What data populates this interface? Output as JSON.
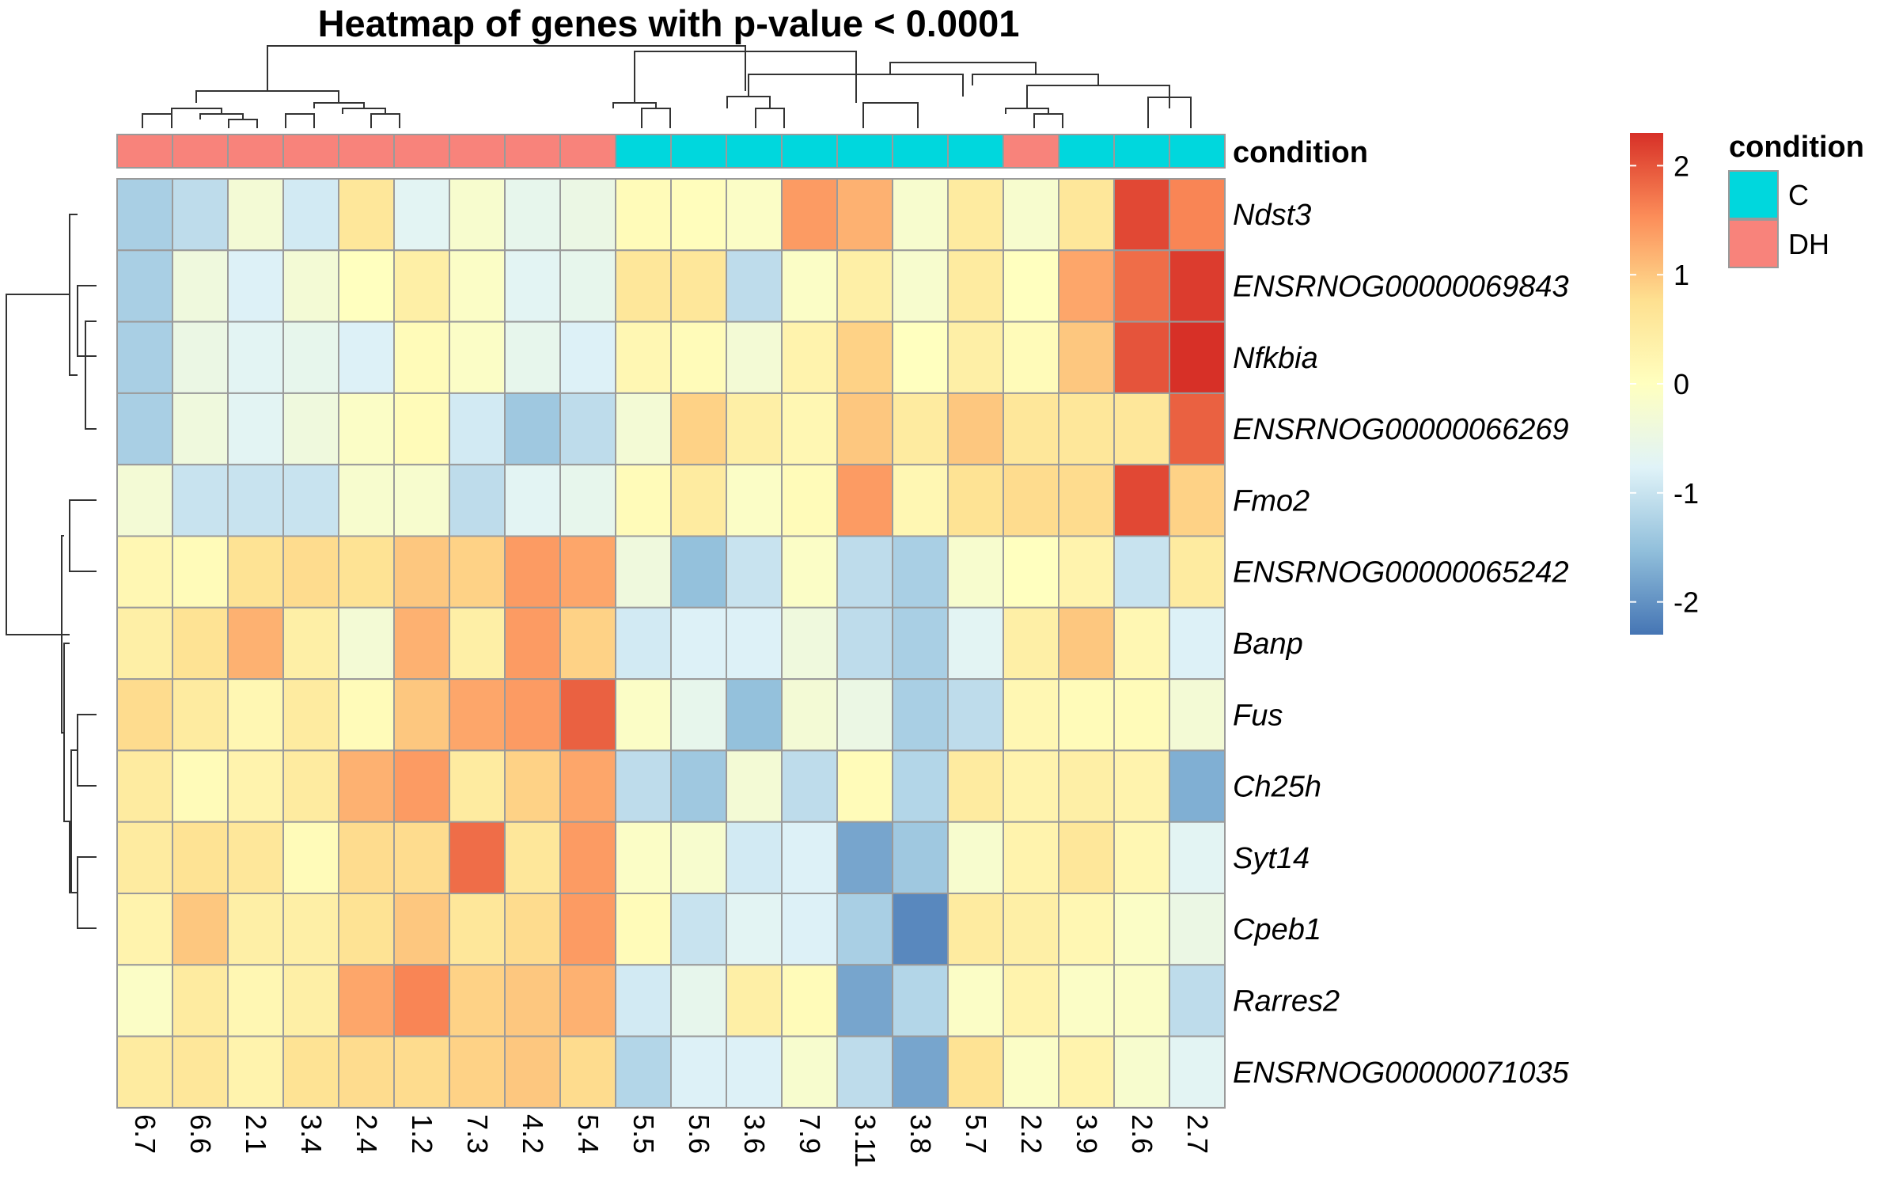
{
  "chart_data": {
    "type": "heatmap",
    "title": "Heatmap of genes with p-value < 0.0001",
    "rows": [
      "Ndst3",
      "ENSRNOG00000069843",
      "Nfkbia",
      "ENSRNOG00000066269",
      "Fmo2",
      "ENSRNOG00000065242",
      "Banp",
      "Fus",
      "Ch25h",
      "Syt14",
      "Cpeb1",
      "Rarres2",
      "ENSRNOG00000071035"
    ],
    "columns": [
      "6.7",
      "6.6",
      "2.1",
      "3.4",
      "2.4",
      "1.2",
      "7.3",
      "4.2",
      "5.4",
      "5.5",
      "5.6",
      "3.6",
      "7.9",
      "3.11",
      "3.8",
      "5.7",
      "2.2",
      "3.9",
      "2.6",
      "2.7"
    ],
    "annotation": {
      "name": "condition",
      "values": [
        "DH",
        "DH",
        "DH",
        "DH",
        "DH",
        "DH",
        "DH",
        "DH",
        "DH",
        "C",
        "C",
        "C",
        "C",
        "C",
        "C",
        "C",
        "DH",
        "C",
        "C",
        "C"
      ],
      "legend": [
        {
          "label": "C",
          "color": "#00D7DD"
        },
        {
          "label": "DH",
          "color": "#F8837B"
        }
      ]
    },
    "values": [
      [
        -1.3,
        -1.1,
        -0.3,
        -0.9,
        0.6,
        -0.7,
        -0.2,
        -0.6,
        -0.5,
        0.1,
        0.05,
        -0.1,
        1.4,
        1.2,
        -0.2,
        0.5,
        -0.2,
        0.6,
        2.1,
        1.6
      ],
      [
        -1.3,
        -0.4,
        -0.8,
        -0.3,
        0.0,
        0.4,
        -0.1,
        -0.7,
        -0.6,
        0.6,
        0.6,
        -1.1,
        -0.1,
        0.4,
        -0.2,
        0.5,
        0.0,
        1.3,
        1.8,
        2.2
      ],
      [
        -1.3,
        -0.5,
        -0.7,
        -0.6,
        -0.8,
        0.1,
        -0.1,
        -0.6,
        -0.8,
        0.2,
        0.1,
        -0.3,
        0.3,
        0.9,
        0.0,
        0.4,
        0.1,
        1.0,
        2.0,
        2.3
      ],
      [
        -1.3,
        -0.4,
        -0.7,
        -0.4,
        -0.1,
        0.1,
        -0.9,
        -1.4,
        -1.1,
        -0.3,
        0.9,
        0.4,
        0.2,
        1.0,
        0.5,
        1.0,
        0.6,
        0.6,
        0.6,
        1.9
      ],
      [
        -0.3,
        -1.0,
        -1.0,
        -1.0,
        -0.2,
        -0.2,
        -1.1,
        -0.7,
        -0.6,
        0.1,
        0.5,
        -0.1,
        0.1,
        1.4,
        0.2,
        0.7,
        0.8,
        0.8,
        2.1,
        0.9
      ],
      [
        0.2,
        0.1,
        0.7,
        0.8,
        0.7,
        1.0,
        0.9,
        1.4,
        1.3,
        -0.4,
        -1.5,
        -1.0,
        -0.1,
        -1.1,
        -1.3,
        -0.2,
        0.0,
        0.3,
        -1.0,
        0.5
      ],
      [
        0.4,
        0.7,
        1.2,
        0.4,
        -0.3,
        1.2,
        0.4,
        1.4,
        0.9,
        -0.9,
        -0.8,
        -0.8,
        -0.4,
        -1.1,
        -1.3,
        -0.7,
        0.4,
        1.0,
        0.2,
        -0.8
      ],
      [
        0.8,
        0.5,
        0.2,
        0.5,
        0.1,
        1.0,
        1.3,
        1.4,
        1.9,
        -0.1,
        -0.6,
        -1.5,
        -0.3,
        -0.5,
        -1.3,
        -1.1,
        0.2,
        0.1,
        0.1,
        -0.3
      ],
      [
        0.5,
        0.1,
        0.3,
        0.5,
        1.2,
        1.4,
        0.5,
        0.9,
        1.3,
        -1.1,
        -1.4,
        -0.3,
        -1.1,
        0.1,
        -1.2,
        0.5,
        0.3,
        0.4,
        0.3,
        -1.7
      ],
      [
        0.5,
        0.7,
        0.6,
        0.1,
        0.8,
        0.8,
        1.8,
        0.6,
        1.4,
        -0.1,
        -0.2,
        -0.9,
        -0.8,
        -1.8,
        -1.4,
        -0.2,
        0.3,
        0.6,
        0.2,
        -0.7
      ],
      [
        0.3,
        1.0,
        0.4,
        0.4,
        0.7,
        1.0,
        0.6,
        0.8,
        1.4,
        0.1,
        -1.0,
        -0.7,
        -0.8,
        -1.3,
        -2.1,
        0.5,
        0.4,
        0.2,
        -0.1,
        -0.5
      ],
      [
        -0.1,
        0.5,
        0.2,
        0.4,
        1.3,
        1.6,
        0.9,
        1.0,
        1.2,
        -0.9,
        -0.6,
        0.4,
        0.1,
        -1.8,
        -1.2,
        -0.1,
        0.3,
        -0.1,
        -0.1,
        -1.1
      ],
      [
        0.5,
        0.6,
        0.3,
        0.7,
        0.8,
        0.8,
        0.9,
        1.0,
        0.8,
        -1.2,
        -0.8,
        -0.8,
        -0.2,
        -1.1,
        -1.8,
        0.7,
        -0.1,
        0.3,
        -0.2,
        -0.7
      ]
    ],
    "colorbar": {
      "range": [
        -2.3,
        2.3
      ],
      "ticks": [
        2,
        1,
        0,
        -1,
        -2
      ],
      "tick_labels": [
        "2",
        "1",
        "0",
        "-1",
        "-2"
      ],
      "colors": [
        "#4575B4",
        "#91BFDB",
        "#E0F3F8",
        "#FFFFBF",
        "#FEE090",
        "#FC8D59",
        "#D73027"
      ]
    },
    "legend_title": "condition"
  }
}
